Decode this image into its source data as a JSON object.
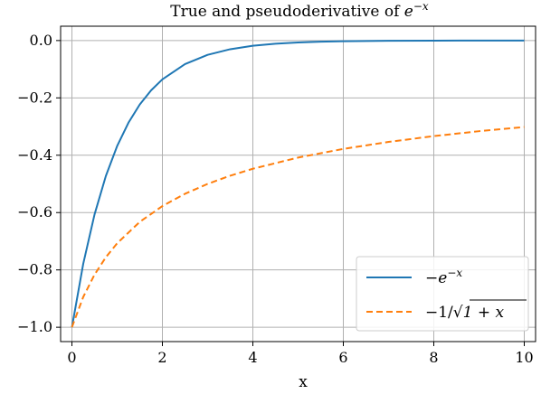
{
  "chart_data": {
    "type": "line",
    "title": "True and pseudoderivative of e^{-x}",
    "title_text": "True and pseudoderivative of ",
    "title_math_base": "e",
    "title_math_sup": "−x",
    "xlabel": "x",
    "ylabel": "",
    "xlim": [
      -0.25,
      10.25
    ],
    "ylim": [
      -1.05,
      0.05
    ],
    "xticks": [
      0,
      2,
      4,
      6,
      8,
      10
    ],
    "xtick_labels": [
      "0",
      "2",
      "4",
      "6",
      "8",
      "10"
    ],
    "yticks": [
      0.0,
      -0.2,
      -0.4,
      -0.6,
      -0.8,
      -1.0
    ],
    "ytick_labels": [
      "0.0",
      "−0.2",
      "−0.4",
      "−0.6",
      "−0.8",
      "−1.0"
    ],
    "grid": true,
    "legend_position": "lower right",
    "series": [
      {
        "name": "−e^{−x}",
        "legend_base": "−e",
        "legend_sup": "−x",
        "color": "#1f77b4",
        "style": "solid",
        "x": [
          0,
          0.25,
          0.5,
          0.75,
          1,
          1.25,
          1.5,
          1.75,
          2,
          2.5,
          3,
          3.5,
          4,
          4.5,
          5,
          5.5,
          6,
          7,
          8,
          9,
          10
        ],
        "y": [
          -1.0,
          -0.7788,
          -0.6065,
          -0.4724,
          -0.3679,
          -0.2865,
          -0.2231,
          -0.1738,
          -0.1353,
          -0.0821,
          -0.0498,
          -0.0302,
          -0.0183,
          -0.0111,
          -0.0067,
          -0.0041,
          -0.0025,
          -0.0009,
          -0.0003,
          -0.0001,
          0.0
        ]
      },
      {
        "name": "−1/√(1+x)",
        "legend_text": "−1/√",
        "legend_radicand": "1 + x",
        "color": "#ff7f0e",
        "style": "dashed",
        "x": [
          0,
          0.25,
          0.5,
          0.75,
          1,
          1.5,
          2,
          2.5,
          3,
          3.5,
          4,
          5,
          6,
          7,
          8,
          9,
          10
        ],
        "y": [
          -1.0,
          -0.8944,
          -0.8165,
          -0.7559,
          -0.7071,
          -0.6325,
          -0.5774,
          -0.5345,
          -0.5,
          -0.4714,
          -0.4472,
          -0.4082,
          -0.378,
          -0.3536,
          -0.3333,
          -0.3162,
          -0.3015
        ]
      }
    ]
  }
}
